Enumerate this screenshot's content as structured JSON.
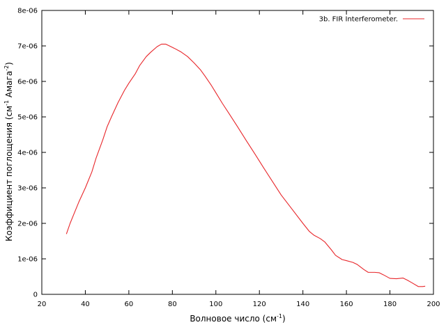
{
  "chart_data": {
    "type": "line",
    "title": "",
    "xlabel": {
      "base": "Волновое число (см",
      "sup": "-1",
      "tail": ")"
    },
    "ylabel": {
      "base": "Коэффициент поглощения (см",
      "sup1": "-1",
      "mid": " Амага",
      "sup2": "-2",
      "tail": ")"
    },
    "xlim": [
      20,
      200
    ],
    "ylim": [
      0,
      8e-06
    ],
    "x_ticks": [
      20,
      40,
      60,
      80,
      100,
      120,
      140,
      160,
      180,
      200
    ],
    "x_tick_labels": [
      "20",
      "40",
      "60",
      "80",
      "100",
      "120",
      "140",
      "160",
      "180",
      "200"
    ],
    "y_ticks": [
      0,
      1e-06,
      2e-06,
      3e-06,
      4e-06,
      5e-06,
      6e-06,
      7e-06,
      8e-06
    ],
    "y_tick_labels": [
      "0",
      "1e-06",
      "2e-06",
      "3e-06",
      "4e-06",
      "5e-06",
      "6e-06",
      "7e-06",
      "8e-06"
    ],
    "grid": false,
    "legend_position": "top-right",
    "series": [
      {
        "name": "3b. FIR Interferometer.",
        "color": "#e8262a",
        "x": [
          31.3,
          33,
          35,
          37,
          40,
          43,
          45,
          48,
          50,
          52,
          55,
          58,
          60,
          63,
          65,
          68,
          70,
          73,
          75,
          77,
          79,
          81,
          84,
          87,
          90,
          93,
          95,
          98,
          100,
          103,
          106,
          110,
          114,
          118,
          122,
          126,
          130,
          135,
          140,
          143,
          145,
          148,
          150,
          153,
          155,
          158,
          160,
          163,
          165,
          168,
          170,
          173,
          175,
          177,
          180,
          183,
          186,
          188,
          190,
          193,
          195,
          196.2
        ],
        "y": [
          1.7e-06,
          2e-06,
          2.3e-06,
          2.6e-06,
          3e-06,
          3.45e-06,
          3.85e-06,
          4.35e-06,
          4.72e-06,
          5e-06,
          5.4e-06,
          5.75e-06,
          5.95e-06,
          6.22e-06,
          6.45e-06,
          6.7e-06,
          6.82e-06,
          6.98e-06,
          7.05e-06,
          7.05e-06,
          6.99e-06,
          6.93e-06,
          6.83e-06,
          6.7e-06,
          6.52e-06,
          6.32e-06,
          6.15e-06,
          5.88e-06,
          5.68e-06,
          5.38e-06,
          5.1e-06,
          4.72e-06,
          4.33e-06,
          3.95e-06,
          3.56e-06,
          3.18e-06,
          2.8e-06,
          2.4e-06,
          2e-06,
          1.77e-06,
          1.67e-06,
          1.57e-06,
          1.48e-06,
          1.26e-06,
          1.1e-06,
          9.8e-07,
          9.5e-07,
          9e-07,
          8.4e-07,
          7e-07,
          6.2e-07,
          6.2e-07,
          6.1e-07,
          5.5e-07,
          4.5e-07,
          4.4e-07,
          4.6e-07,
          4e-07,
          3.3e-07,
          2.2e-07,
          2.2e-07,
          2.3e-07
        ]
      }
    ]
  }
}
